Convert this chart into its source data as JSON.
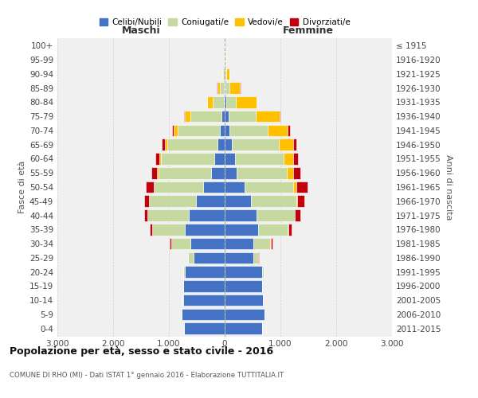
{
  "age_groups": [
    "0-4",
    "5-9",
    "10-14",
    "15-19",
    "20-24",
    "25-29",
    "30-34",
    "35-39",
    "40-44",
    "45-49",
    "50-54",
    "55-59",
    "60-64",
    "65-69",
    "70-74",
    "75-79",
    "80-84",
    "85-89",
    "90-94",
    "95-99",
    "100+"
  ],
  "birth_years": [
    "2011-2015",
    "2006-2010",
    "2001-2005",
    "1996-2000",
    "1991-1995",
    "1986-1990",
    "1981-1985",
    "1976-1980",
    "1971-1975",
    "1966-1970",
    "1961-1965",
    "1956-1960",
    "1951-1955",
    "1946-1950",
    "1941-1945",
    "1936-1940",
    "1931-1935",
    "1926-1930",
    "1921-1925",
    "1916-1920",
    "≤ 1915"
  ],
  "male_celibi": [
    730,
    770,
    750,
    740,
    710,
    560,
    620,
    720,
    640,
    520,
    380,
    240,
    180,
    130,
    90,
    60,
    20,
    10,
    5,
    3,
    2
  ],
  "male_coniugati": [
    0,
    0,
    1,
    4,
    28,
    95,
    340,
    580,
    740,
    840,
    890,
    950,
    960,
    900,
    750,
    560,
    200,
    80,
    25,
    8,
    2
  ],
  "male_vedovi": [
    0,
    0,
    0,
    0,
    0,
    1,
    1,
    2,
    4,
    4,
    8,
    18,
    28,
    45,
    75,
    100,
    95,
    45,
    12,
    3,
    1
  ],
  "male_divorziati": [
    0,
    0,
    0,
    0,
    2,
    5,
    18,
    38,
    60,
    80,
    130,
    100,
    70,
    50,
    30,
    10,
    5,
    3,
    1,
    0,
    0
  ],
  "female_nubili": [
    670,
    720,
    690,
    670,
    670,
    510,
    510,
    600,
    570,
    470,
    350,
    220,
    180,
    130,
    90,
    70,
    25,
    15,
    8,
    3,
    2
  ],
  "female_coniugate": [
    0,
    0,
    1,
    4,
    28,
    95,
    310,
    530,
    680,
    810,
    880,
    900,
    880,
    840,
    680,
    480,
    170,
    70,
    25,
    8,
    2
  ],
  "female_vedove": [
    0,
    0,
    0,
    0,
    0,
    2,
    4,
    8,
    12,
    25,
    55,
    110,
    170,
    260,
    360,
    430,
    370,
    190,
    55,
    14,
    2
  ],
  "female_divorziate": [
    0,
    0,
    0,
    0,
    2,
    8,
    28,
    58,
    90,
    130,
    200,
    120,
    90,
    60,
    40,
    15,
    8,
    5,
    2,
    1,
    0
  ],
  "color_celibi": "#4472c4",
  "color_coniugati": "#c5d9a0",
  "color_vedovi": "#ffc000",
  "color_divorziati": "#c0000c",
  "title": "Popolazione per età, sesso e stato civile - 2016",
  "subtitle": "COMUNE DI RHO (MI) - Dati ISTAT 1° gennaio 2016 - Elaborazione TUTTITALIA.IT",
  "label_maschi": "Maschi",
  "label_femmine": "Femmine",
  "label_fasce": "Fasce di età",
  "label_anni": "Anni di nascita",
  "legend_celibi": "Celibi/Nubili",
  "legend_coniugati": "Coniugati/e",
  "legend_vedovi": "Vedovi/e",
  "legend_divorziati": "Divorziati/e",
  "xlim": 3000,
  "bg_color": "#f0f0f0"
}
